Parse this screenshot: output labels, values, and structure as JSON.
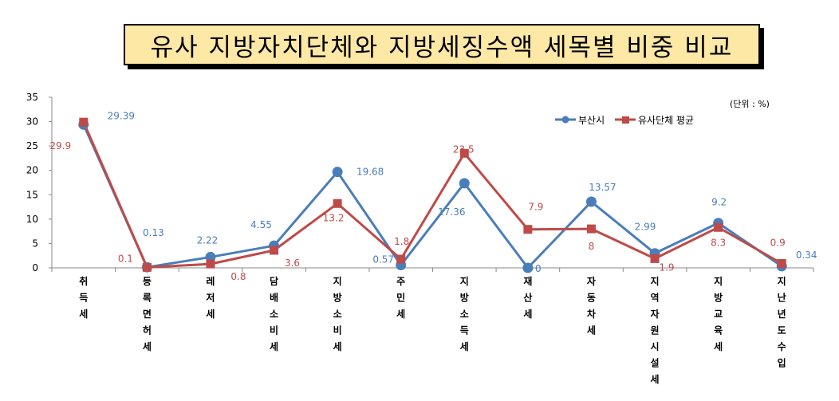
{
  "title": "유사 지방자치단체와 지방세징수액 세목별 비중 비교",
  "colors": {
    "busan": "#4a7ebb",
    "similar": "#be4b48",
    "title_bg": "#fde8a6"
  },
  "chart_data": {
    "type": "line",
    "title": "유사 지방자치단체와 지방세징수액 세목별 비중 비교",
    "unit_note": "(단위 : %)",
    "categories": [
      "취득세",
      "등록면허세",
      "레저세",
      "담배소비세",
      "지방소비세",
      "주민세",
      "지방소득세",
      "재산세",
      "자동차세",
      "지역자원시설세",
      "지방교육세",
      "지난년도수입"
    ],
    "series": [
      {
        "name": "부산시",
        "values": [
          29.39,
          0.13,
          2.22,
          4.55,
          19.68,
          0.57,
          17.36,
          0,
          13.57,
          2.99,
          9.2,
          0.34
        ]
      },
      {
        "name": "유사단체 평균",
        "values": [
          29.9,
          0.1,
          0.8,
          3.6,
          13.2,
          1.8,
          23.5,
          7.9,
          8,
          1.9,
          8.3,
          0.9
        ]
      }
    ],
    "ylim": [
      0,
      35
    ],
    "yticks": [
      0,
      5,
      10,
      15,
      20,
      25,
      30,
      35
    ],
    "grid": false,
    "legend_position": "top-right"
  }
}
